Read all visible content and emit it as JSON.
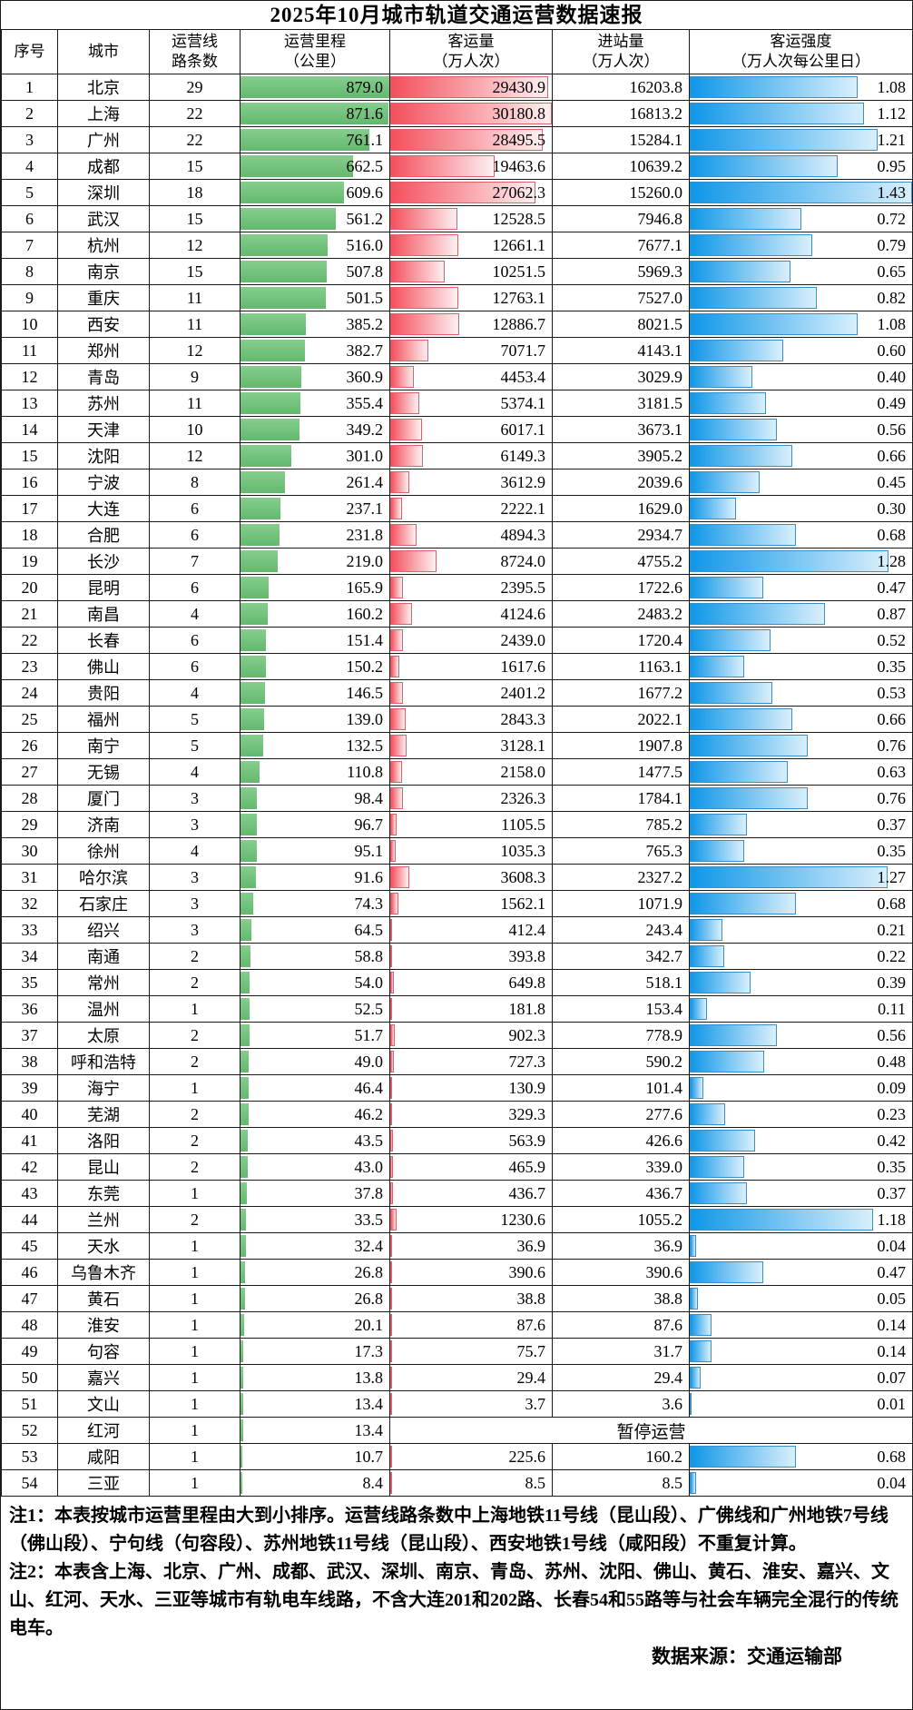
{
  "title": "2025年10月城市轨道交通运营数据速报",
  "header": {
    "col_index": "序号",
    "col_city": "城市",
    "col_lines": "运营线\n路条数",
    "col_km": "运营里程\n（公里）",
    "col_pax": "客运量\n（万人次）",
    "col_entry": "进站量\n（万人次）",
    "col_intensity": "客运强度\n（万人次每公里日）"
  },
  "suspended_label": "暂停运营",
  "notes": {
    "note1": "注1：本表按城市运营里程由大到小排序。运营线路条数中上海地铁11号线（昆山段）、广佛线和广州地铁7号线（佛山段）、宁句线（句容段）、苏州地铁11号线（昆山段）、西安地铁1号线（咸阳段）不重复计算。",
    "note2": "注2：本表含上海、北京、广州、成都、武汉、深圳、南京、青岛、苏州、沈阳、佛山、黄石、淮安、嘉兴、文山、红河、天水、三亚等城市有轨电车线路，不含大连201和202路、长春54和55路等与社会车辆完全混行的传统电车。",
    "source": "数据来源：交通运输部"
  },
  "colors": {
    "mileage_bar": "#6fc178",
    "ridership_bar_start": "#f44f5c",
    "ridership_bar_end": "#fdf0f1",
    "ridership_bar_border": "#e2606c",
    "intensity_bar_start": "#0f97e8",
    "intensity_bar_end": "#d9effc",
    "intensity_bar_border": "#3a8ecb"
  },
  "chart_data": {
    "type": "table",
    "title": "2025年10月城市轨道交通运营数据速报",
    "columns": [
      "序号",
      "城市",
      "运营线路条数",
      "运营里程（公里）",
      "客运量（万人次）",
      "进站量（万人次）",
      "客运强度（万人次每公里日）"
    ],
    "bar_max": {
      "km": 879.0,
      "pax": 30180.8,
      "intensity": 1.43
    },
    "rows": [
      {
        "i": "1",
        "city": "北京",
        "lines": "29",
        "km": "879.0",
        "pax": "29430.9",
        "entry": "16203.8",
        "int": "1.08"
      },
      {
        "i": "2",
        "city": "上海",
        "lines": "22",
        "km": "871.6",
        "pax": "30180.8",
        "entry": "16813.2",
        "int": "1.12"
      },
      {
        "i": "3",
        "city": "广州",
        "lines": "22",
        "km": "761.1",
        "pax": "28495.5",
        "entry": "15284.1",
        "int": "1.21"
      },
      {
        "i": "4",
        "city": "成都",
        "lines": "15",
        "km": "662.5",
        "pax": "19463.6",
        "entry": "10639.2",
        "int": "0.95"
      },
      {
        "i": "5",
        "city": "深圳",
        "lines": "18",
        "km": "609.6",
        "pax": "27062.3",
        "entry": "15260.0",
        "int": "1.43"
      },
      {
        "i": "6",
        "city": "武汉",
        "lines": "15",
        "km": "561.2",
        "pax": "12528.5",
        "entry": "7946.8",
        "int": "0.72"
      },
      {
        "i": "7",
        "city": "杭州",
        "lines": "12",
        "km": "516.0",
        "pax": "12661.1",
        "entry": "7677.1",
        "int": "0.79"
      },
      {
        "i": "8",
        "city": "南京",
        "lines": "15",
        "km": "507.8",
        "pax": "10251.5",
        "entry": "5969.3",
        "int": "0.65"
      },
      {
        "i": "9",
        "city": "重庆",
        "lines": "11",
        "km": "501.5",
        "pax": "12763.1",
        "entry": "7527.0",
        "int": "0.82"
      },
      {
        "i": "10",
        "city": "西安",
        "lines": "11",
        "km": "385.2",
        "pax": "12886.7",
        "entry": "8021.5",
        "int": "1.08"
      },
      {
        "i": "11",
        "city": "郑州",
        "lines": "12",
        "km": "382.7",
        "pax": "7071.7",
        "entry": "4143.1",
        "int": "0.60"
      },
      {
        "i": "12",
        "city": "青岛",
        "lines": "9",
        "km": "360.9",
        "pax": "4453.4",
        "entry": "3029.9",
        "int": "0.40"
      },
      {
        "i": "13",
        "city": "苏州",
        "lines": "11",
        "km": "355.4",
        "pax": "5374.1",
        "entry": "3181.5",
        "int": "0.49"
      },
      {
        "i": "14",
        "city": "天津",
        "lines": "10",
        "km": "349.2",
        "pax": "6017.1",
        "entry": "3673.1",
        "int": "0.56"
      },
      {
        "i": "15",
        "city": "沈阳",
        "lines": "12",
        "km": "301.0",
        "pax": "6149.3",
        "entry": "3905.2",
        "int": "0.66"
      },
      {
        "i": "16",
        "city": "宁波",
        "lines": "8",
        "km": "261.4",
        "pax": "3612.9",
        "entry": "2039.6",
        "int": "0.45"
      },
      {
        "i": "17",
        "city": "大连",
        "lines": "6",
        "km": "237.1",
        "pax": "2222.1",
        "entry": "1629.0",
        "int": "0.30"
      },
      {
        "i": "18",
        "city": "合肥",
        "lines": "6",
        "km": "231.8",
        "pax": "4894.3",
        "entry": "2934.7",
        "int": "0.68"
      },
      {
        "i": "19",
        "city": "长沙",
        "lines": "7",
        "km": "219.0",
        "pax": "8724.0",
        "entry": "4755.2",
        "int": "1.28"
      },
      {
        "i": "20",
        "city": "昆明",
        "lines": "6",
        "km": "165.9",
        "pax": "2395.5",
        "entry": "1722.6",
        "int": "0.47"
      },
      {
        "i": "21",
        "city": "南昌",
        "lines": "4",
        "km": "160.2",
        "pax": "4124.6",
        "entry": "2483.2",
        "int": "0.87"
      },
      {
        "i": "22",
        "city": "长春",
        "lines": "6",
        "km": "151.4",
        "pax": "2439.0",
        "entry": "1720.4",
        "int": "0.52"
      },
      {
        "i": "23",
        "city": "佛山",
        "lines": "6",
        "km": "150.2",
        "pax": "1617.6",
        "entry": "1163.1",
        "int": "0.35"
      },
      {
        "i": "24",
        "city": "贵阳",
        "lines": "4",
        "km": "146.5",
        "pax": "2401.2",
        "entry": "1677.2",
        "int": "0.53"
      },
      {
        "i": "25",
        "city": "福州",
        "lines": "5",
        "km": "139.0",
        "pax": "2843.3",
        "entry": "2022.1",
        "int": "0.66"
      },
      {
        "i": "26",
        "city": "南宁",
        "lines": "5",
        "km": "132.5",
        "pax": "3128.1",
        "entry": "1907.8",
        "int": "0.76"
      },
      {
        "i": "27",
        "city": "无锡",
        "lines": "4",
        "km": "110.8",
        "pax": "2158.0",
        "entry": "1477.5",
        "int": "0.63"
      },
      {
        "i": "28",
        "city": "厦门",
        "lines": "3",
        "km": "98.4",
        "pax": "2326.3",
        "entry": "1784.1",
        "int": "0.76"
      },
      {
        "i": "29",
        "city": "济南",
        "lines": "3",
        "km": "96.7",
        "pax": "1105.5",
        "entry": "785.2",
        "int": "0.37"
      },
      {
        "i": "30",
        "city": "徐州",
        "lines": "4",
        "km": "95.1",
        "pax": "1035.3",
        "entry": "765.3",
        "int": "0.35"
      },
      {
        "i": "31",
        "city": "哈尔滨",
        "lines": "3",
        "km": "91.6",
        "pax": "3608.3",
        "entry": "2327.2",
        "int": "1.27"
      },
      {
        "i": "32",
        "city": "石家庄",
        "lines": "3",
        "km": "74.3",
        "pax": "1562.1",
        "entry": "1071.9",
        "int": "0.68"
      },
      {
        "i": "33",
        "city": "绍兴",
        "lines": "3",
        "km": "64.5",
        "pax": "412.4",
        "entry": "243.4",
        "int": "0.21"
      },
      {
        "i": "34",
        "city": "南通",
        "lines": "2",
        "km": "58.8",
        "pax": "393.8",
        "entry": "342.7",
        "int": "0.22"
      },
      {
        "i": "35",
        "city": "常州",
        "lines": "2",
        "km": "54.0",
        "pax": "649.8",
        "entry": "518.1",
        "int": "0.39"
      },
      {
        "i": "36",
        "city": "温州",
        "lines": "1",
        "km": "52.5",
        "pax": "181.8",
        "entry": "153.4",
        "int": "0.11"
      },
      {
        "i": "37",
        "city": "太原",
        "lines": "2",
        "km": "51.7",
        "pax": "902.3",
        "entry": "778.9",
        "int": "0.56"
      },
      {
        "i": "38",
        "city": "呼和浩特",
        "lines": "2",
        "km": "49.0",
        "pax": "727.3",
        "entry": "590.2",
        "int": "0.48"
      },
      {
        "i": "39",
        "city": "海宁",
        "lines": "1",
        "km": "46.4",
        "pax": "130.9",
        "entry": "101.4",
        "int": "0.09"
      },
      {
        "i": "40",
        "city": "芜湖",
        "lines": "2",
        "km": "46.2",
        "pax": "329.3",
        "entry": "277.6",
        "int": "0.23"
      },
      {
        "i": "41",
        "city": "洛阳",
        "lines": "2",
        "km": "43.5",
        "pax": "563.9",
        "entry": "426.6",
        "int": "0.42"
      },
      {
        "i": "42",
        "city": "昆山",
        "lines": "2",
        "km": "43.0",
        "pax": "465.9",
        "entry": "339.0",
        "int": "0.35"
      },
      {
        "i": "43",
        "city": "东莞",
        "lines": "1",
        "km": "37.8",
        "pax": "436.7",
        "entry": "436.7",
        "int": "0.37"
      },
      {
        "i": "44",
        "city": "兰州",
        "lines": "2",
        "km": "33.5",
        "pax": "1230.6",
        "entry": "1055.2",
        "int": "1.18"
      },
      {
        "i": "45",
        "city": "天水",
        "lines": "1",
        "km": "32.4",
        "pax": "36.9",
        "entry": "36.9",
        "int": "0.04"
      },
      {
        "i": "46",
        "city": "乌鲁木齐",
        "lines": "1",
        "km": "26.8",
        "pax": "390.6",
        "entry": "390.6",
        "int": "0.47"
      },
      {
        "i": "47",
        "city": "黄石",
        "lines": "1",
        "km": "26.8",
        "pax": "38.8",
        "entry": "38.8",
        "int": "0.05"
      },
      {
        "i": "48",
        "city": "淮安",
        "lines": "1",
        "km": "20.1",
        "pax": "87.6",
        "entry": "87.6",
        "int": "0.14"
      },
      {
        "i": "49",
        "city": "句容",
        "lines": "1",
        "km": "17.3",
        "pax": "75.7",
        "entry": "31.7",
        "int": "0.14"
      },
      {
        "i": "50",
        "city": "嘉兴",
        "lines": "1",
        "km": "13.8",
        "pax": "29.4",
        "entry": "29.4",
        "int": "0.07"
      },
      {
        "i": "51",
        "city": "文山",
        "lines": "1",
        "km": "13.4",
        "pax": "3.7",
        "entry": "3.6",
        "int": "0.01"
      },
      {
        "i": "52",
        "city": "红河",
        "lines": "1",
        "km": "13.4",
        "suspended": true
      },
      {
        "i": "53",
        "city": "咸阳",
        "lines": "1",
        "km": "10.7",
        "pax": "225.6",
        "entry": "160.2",
        "int": "0.68"
      },
      {
        "i": "54",
        "city": "三亚",
        "lines": "1",
        "km": "8.4",
        "pax": "8.5",
        "entry": "8.5",
        "int": "0.04"
      }
    ]
  }
}
